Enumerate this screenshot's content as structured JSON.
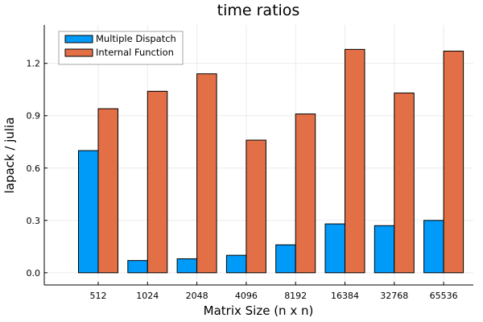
{
  "chart_data": {
    "type": "bar",
    "title": "time ratios",
    "xlabel": "Matrix Size (n x n)",
    "ylabel": "lapack / julia",
    "categories": [
      "512",
      "1024",
      "2048",
      "4096",
      "8192",
      "16384",
      "32768",
      "65536"
    ],
    "series": [
      {
        "name": "Multiple Dispatch",
        "color": "#009af9",
        "values": [
          0.7,
          0.07,
          0.08,
          0.1,
          0.16,
          0.28,
          0.27,
          0.3
        ]
      },
      {
        "name": "Internal Function",
        "color": "#e26f46",
        "values": [
          0.94,
          1.04,
          1.14,
          0.76,
          0.91,
          1.28,
          1.03,
          1.27
        ]
      }
    ],
    "yticks": [
      0.0,
      0.3,
      0.6,
      0.9,
      1.2
    ],
    "ytick_labels": [
      "0.0",
      "0.3",
      "0.6",
      "0.9",
      "1.2"
    ],
    "ylim": [
      -0.07,
      1.42
    ],
    "grid": true,
    "legend": "top-left"
  }
}
